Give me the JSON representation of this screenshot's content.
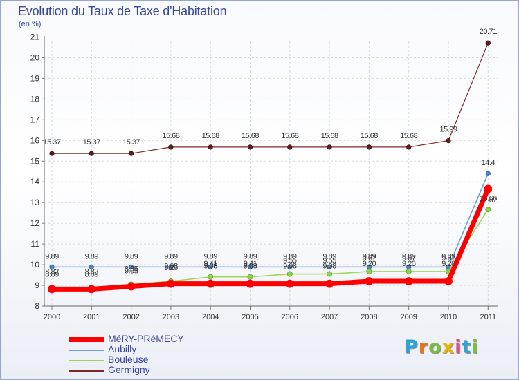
{
  "title": "Evolution du Taux de Taxe d'Habitation",
  "unit": "(en %)",
  "brand": {
    "text": "Proxiti",
    "colors": [
      "#2aa3d8",
      "#e2761c",
      "#7bbf3a",
      "#e8b400",
      "#e04c8c",
      "#2aa3d8",
      "#7bbf3a"
    ]
  },
  "chart_data": {
    "type": "line",
    "title": "Evolution du Taux de Taxe d'Habitation",
    "ylabel": "(en %)",
    "xlabel": "",
    "ylim": [
      8,
      21
    ],
    "yticks": [
      8,
      9,
      10,
      11,
      12,
      13,
      14,
      15,
      16,
      17,
      18,
      19,
      20,
      21
    ],
    "categories": [
      "2000",
      "2001",
      "2002",
      "2003",
      "2004",
      "2005",
      "2006",
      "2007",
      "2008",
      "2009",
      "2010",
      "2011"
    ],
    "series": [
      {
        "name": "Germigny",
        "color": "#7b2a2a",
        "values": [
          15.37,
          15.37,
          15.37,
          15.68,
          15.68,
          15.68,
          15.68,
          15.68,
          15.68,
          15.68,
          15.99,
          20.71
        ],
        "labels": [
          "15.37",
          "15.37",
          "15.37",
          "15.68",
          "15.68",
          "15.68",
          "15.68",
          "15.68",
          "15.68",
          "15.68",
          "15.99",
          "20.71"
        ]
      },
      {
        "name": "Aubilly",
        "color": "#6fa0d8",
        "values": [
          9.89,
          9.89,
          9.89,
          9.89,
          9.89,
          9.89,
          9.89,
          9.89,
          9.89,
          9.89,
          9.89,
          14.4
        ],
        "labels": [
          "9.89",
          "9.89",
          "9.89",
          "9.89",
          "9.89",
          "9.89",
          "9.89",
          "9.89",
          "9.89",
          "9.89",
          "9.89",
          "14.4"
        ]
      },
      {
        "name": "Bouleuse",
        "color": "#9ad85a",
        "values": [
          8.89,
          8.89,
          9.05,
          9.2,
          9.41,
          9.41,
          9.55,
          9.55,
          9.67,
          9.67,
          9.67,
          12.67
        ],
        "labels": [
          "8.89",
          "8.89",
          "9.05",
          "9.20",
          "9.41",
          "9.41",
          "9.55",
          "9.55",
          "9.67",
          "9.67",
          "9.67",
          "12.67"
        ]
      },
      {
        "name": "MéRY-PRéMECY",
        "color": "#ff0000",
        "values": [
          8.82,
          8.82,
          8.95,
          9.08,
          9.08,
          9.08,
          9.08,
          9.08,
          9.2,
          9.2,
          9.2,
          13.66
        ],
        "labels": [
          "8.82",
          "8.82",
          "8.95",
          "9.08",
          "9.08",
          "9.08",
          "9.08",
          "9.08",
          "9.20",
          "9.20",
          "9.20",
          "13.66"
        ]
      }
    ],
    "legend": {
      "placement": "bottom-left",
      "order": [
        "MéRY-PRéMECY",
        "Aubilly",
        "Bouleuse",
        "Germigny"
      ]
    }
  }
}
